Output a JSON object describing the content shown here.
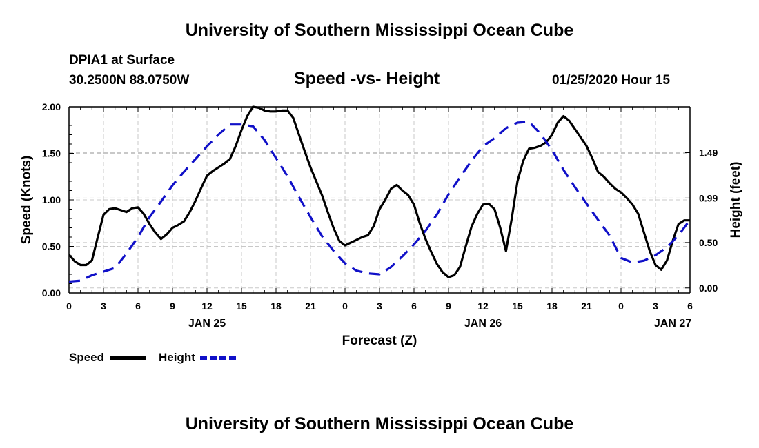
{
  "header": {
    "title": "University of Southern Mississippi Ocean Cube",
    "station": "DPIA1 at Surface",
    "coords": "30.2500N 88.0750W",
    "subtitle": "Speed -vs- Height",
    "datetime": "01/25/2020 Hour 15"
  },
  "footer": {
    "title": "University of Southern Mississippi Ocean Cube"
  },
  "legend": {
    "speed_label": "Speed",
    "height_label": "Height"
  },
  "chart_data": {
    "type": "line",
    "title": "Speed -vs- Height",
    "xlabel": "Forecast (Z)",
    "ylabel": "Speed (Knots)",
    "y2label": "Height (feet)",
    "xlim": [
      0,
      54
    ],
    "ylim": [
      0,
      2.0
    ],
    "y2lim": [
      -0.055,
      1.995
    ],
    "x_ticks": [
      0,
      3,
      6,
      9,
      12,
      15,
      18,
      21,
      24,
      27,
      30,
      33,
      36,
      39,
      42,
      45,
      48,
      51,
      54
    ],
    "x_tick_labels": [
      "0",
      "3",
      "6",
      "9",
      "12",
      "15",
      "18",
      "21",
      "0",
      "3",
      "6",
      "9",
      "12",
      "15",
      "18",
      "21",
      "0",
      "3",
      "6"
    ],
    "y_ticks": [
      0,
      0.5,
      1.0,
      1.5,
      2.0
    ],
    "y_tick_labels": [
      "0.00",
      "0.50",
      "1.00",
      "1.50",
      "2.00"
    ],
    "y2_ticks": [
      0,
      0.5,
      0.99,
      1.49
    ],
    "y2_tick_labels": [
      "0.00",
      "0.50",
      "0.99",
      "1.49"
    ],
    "date_labels": [
      {
        "x": 12,
        "label": "JAN 25"
      },
      {
        "x": 36,
        "label": "JAN 26"
      },
      {
        "x": 52.5,
        "label": "JAN 27"
      }
    ],
    "grid": true,
    "legend_position": "bottom-left",
    "colors": {
      "speed": "#000000",
      "height": "#1010c8"
    },
    "series": [
      {
        "name": "Speed",
        "axis": "left",
        "style": "solid",
        "x": [
          0,
          0.5,
          1,
          1.5,
          2,
          2.5,
          3,
          3.5,
          4,
          4.5,
          5,
          5.5,
          6,
          6.5,
          7,
          7.5,
          8,
          8.5,
          9,
          9.5,
          10,
          10.5,
          11,
          11.5,
          12,
          12.5,
          13,
          13.5,
          14,
          14.5,
          15,
          15.5,
          16,
          16.5,
          17,
          17.5,
          18,
          18.5,
          19,
          19.5,
          20,
          20.5,
          21,
          21.5,
          22,
          22.5,
          23,
          23.5,
          24,
          24.5,
          25,
          25.5,
          26,
          26.5,
          27,
          27.5,
          28,
          28.5,
          29,
          29.5,
          30,
          30.5,
          31,
          31.5,
          32,
          32.5,
          33,
          33.5,
          34,
          34.5,
          35,
          35.5,
          36,
          36.5,
          37,
          37.5,
          38,
          38.5,
          39,
          39.5,
          40,
          40.5,
          41,
          41.5,
          42,
          42.5,
          43,
          43.5,
          44,
          44.5,
          45,
          45.5,
          46,
          46.5,
          47,
          47.5,
          48,
          48.5,
          49,
          49.5,
          50,
          50.5,
          51,
          51.5,
          52,
          52.5,
          53,
          53.5,
          54
        ],
        "values": [
          0.41,
          0.34,
          0.3,
          0.3,
          0.35,
          0.6,
          0.84,
          0.9,
          0.91,
          0.89,
          0.87,
          0.91,
          0.92,
          0.85,
          0.74,
          0.65,
          0.58,
          0.63,
          0.7,
          0.73,
          0.77,
          0.87,
          0.99,
          1.13,
          1.26,
          1.31,
          1.35,
          1.39,
          1.44,
          1.58,
          1.75,
          1.9,
          2.0,
          1.99,
          1.96,
          1.95,
          1.95,
          1.96,
          1.96,
          1.88,
          1.7,
          1.52,
          1.35,
          1.2,
          1.05,
          0.87,
          0.7,
          0.56,
          0.51,
          0.54,
          0.57,
          0.6,
          0.62,
          0.72,
          0.9,
          1.0,
          1.12,
          1.16,
          1.1,
          1.05,
          0.95,
          0.75,
          0.58,
          0.44,
          0.31,
          0.22,
          0.17,
          0.19,
          0.28,
          0.5,
          0.71,
          0.85,
          0.95,
          0.96,
          0.9,
          0.7,
          0.45,
          0.8,
          1.2,
          1.42,
          1.55,
          1.56,
          1.58,
          1.62,
          1.7,
          1.83,
          1.9,
          1.85,
          1.76,
          1.67,
          1.58,
          1.45,
          1.3,
          1.25,
          1.18,
          1.12,
          1.08,
          1.02,
          0.95,
          0.85,
          0.65,
          0.45,
          0.3,
          0.25,
          0.35,
          0.56,
          0.74,
          0.78,
          0.78
        ]
      },
      {
        "name": "Height",
        "axis": "right",
        "style": "dashed",
        "x": [
          0,
          1,
          2,
          3,
          4,
          5,
          6,
          7,
          8,
          9,
          10,
          11,
          12,
          13,
          14,
          15,
          16,
          17,
          18,
          19,
          20,
          21,
          22,
          23,
          24,
          25,
          26,
          27,
          28,
          29,
          30,
          31,
          32,
          33,
          34,
          35,
          36,
          37,
          38,
          39,
          40,
          41,
          42,
          43,
          44,
          45,
          46,
          47,
          48,
          49,
          50,
          51,
          52,
          53,
          54
        ],
        "values": [
          0.07,
          0.08,
          0.14,
          0.18,
          0.22,
          0.38,
          0.56,
          0.78,
          0.95,
          1.13,
          1.28,
          1.42,
          1.56,
          1.69,
          1.8,
          1.8,
          1.78,
          1.63,
          1.43,
          1.23,
          1.0,
          0.78,
          0.57,
          0.41,
          0.27,
          0.19,
          0.16,
          0.15,
          0.23,
          0.35,
          0.48,
          0.63,
          0.81,
          1.03,
          1.22,
          1.4,
          1.56,
          1.65,
          1.76,
          1.82,
          1.83,
          1.7,
          1.52,
          1.3,
          1.11,
          0.93,
          0.75,
          0.58,
          0.33,
          0.28,
          0.3,
          0.36,
          0.45,
          0.58,
          0.75
        ]
      }
    ]
  }
}
